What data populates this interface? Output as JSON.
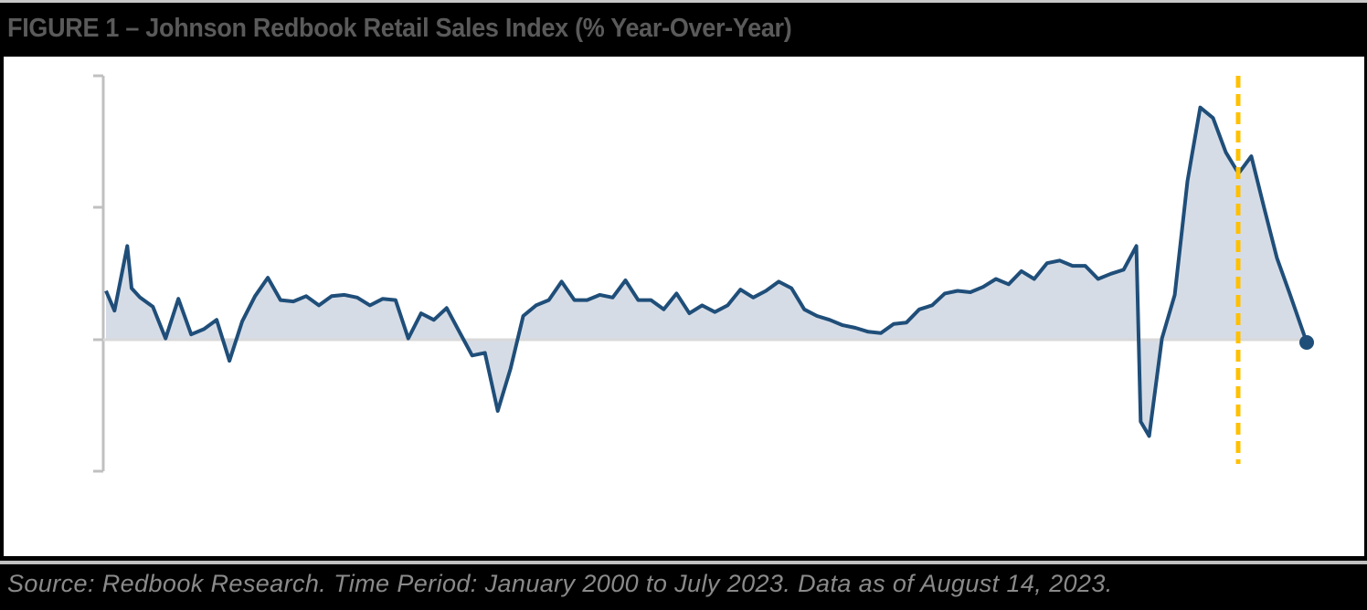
{
  "header": {
    "title": "FIGURE 1 – Johnson Redbook Retail Sales Index (% Year-Over-Year)"
  },
  "footer": {
    "source": "Source: Redbook Research. Time Period: January 2000 to July 2023. Data as of August 14, 2023."
  },
  "colors": {
    "line": "#1f4e79",
    "fill": "#d6dce6",
    "marker_line": "#ffc000",
    "axis": "#c0c0c0",
    "zero_line": "#d9d9d9",
    "title_text": "#5a5a5a",
    "footer_text": "#8a8a8a"
  },
  "chart_data": {
    "type": "area",
    "title": "Johnson Redbook Retail Sales Index (% Year-Over-Year)",
    "xlabel": "",
    "ylabel": "% Year-Over-Year",
    "x_range": [
      "2000-01",
      "2023-07"
    ],
    "ylim": [
      -10,
      20
    ],
    "y_ticks": [
      -10,
      0,
      10,
      20
    ],
    "y_tick_labels_visible": false,
    "grid": false,
    "legend": null,
    "annotations": [
      {
        "type": "vertical-dashed-line",
        "color": "#ffc000",
        "x": "2022-03"
      },
      {
        "type": "end-point-marker",
        "x": "2023-07",
        "y": -0.2
      }
    ],
    "series": [
      {
        "name": "Johnson Redbook Retail Sales Index YoY %",
        "x": [
          "2000-01",
          "2000-03",
          "2000-06",
          "2000-07",
          "2000-09",
          "2000-12",
          "2001-03",
          "2001-06",
          "2001-09",
          "2001-12",
          "2002-03",
          "2002-06",
          "2002-09",
          "2002-12",
          "2003-03",
          "2003-06",
          "2003-09",
          "2003-12",
          "2004-03",
          "2004-06",
          "2004-09",
          "2004-12",
          "2005-03",
          "2005-06",
          "2005-09",
          "2005-12",
          "2006-03",
          "2006-06",
          "2006-09",
          "2006-12",
          "2007-03",
          "2007-06",
          "2007-09",
          "2007-12",
          "2008-03",
          "2008-06",
          "2008-09",
          "2008-12",
          "2009-03",
          "2009-06",
          "2009-09",
          "2009-12",
          "2010-03",
          "2010-06",
          "2010-09",
          "2010-12",
          "2011-03",
          "2011-06",
          "2011-09",
          "2011-12",
          "2012-03",
          "2012-06",
          "2012-09",
          "2012-12",
          "2013-03",
          "2013-06",
          "2013-09",
          "2013-12",
          "2014-03",
          "2014-06",
          "2014-09",
          "2014-12",
          "2015-03",
          "2015-06",
          "2015-09",
          "2015-12",
          "2016-03",
          "2016-06",
          "2016-09",
          "2016-12",
          "2017-03",
          "2017-06",
          "2017-09",
          "2017-12",
          "2018-03",
          "2018-06",
          "2018-09",
          "2018-12",
          "2019-03",
          "2019-06",
          "2019-09",
          "2019-12",
          "2020-03",
          "2020-04",
          "2020-06",
          "2020-09",
          "2020-12",
          "2021-03",
          "2021-04",
          "2021-06",
          "2021-09",
          "2021-12",
          "2022-03",
          "2022-06",
          "2022-09",
          "2022-12",
          "2023-03",
          "2023-07"
        ],
        "values": [
          3.7,
          2.2,
          7.1,
          3.9,
          3.2,
          2.5,
          0.1,
          3.1,
          0.4,
          0.8,
          1.5,
          -1.6,
          1.4,
          3.3,
          4.7,
          3.0,
          2.9,
          3.3,
          2.6,
          3.3,
          3.4,
          3.2,
          2.6,
          3.1,
          3.0,
          0.1,
          2.0,
          1.5,
          2.4,
          0.6,
          -1.2,
          -1.0,
          -5.4,
          -2.2,
          1.8,
          2.6,
          3.0,
          4.4,
          3.0,
          3.0,
          3.4,
          3.2,
          4.5,
          3.0,
          3.0,
          2.3,
          3.5,
          2.0,
          2.6,
          2.1,
          2.6,
          3.8,
          3.2,
          3.7,
          4.4,
          3.9,
          2.3,
          1.8,
          1.5,
          1.1,
          0.9,
          0.6,
          0.5,
          1.2,
          1.3,
          2.3,
          2.6,
          3.5,
          3.7,
          3.6,
          4.0,
          4.6,
          4.2,
          5.2,
          4.6,
          5.8,
          6.0,
          5.6,
          5.6,
          4.6,
          5.0,
          5.3,
          7.1,
          -6.2,
          -7.3,
          0.1,
          3.4,
          12.0,
          13.9,
          17.6,
          16.8,
          14.2,
          12.6,
          13.9,
          10.0,
          6.2,
          3.5,
          -0.2
        ]
      }
    ]
  }
}
